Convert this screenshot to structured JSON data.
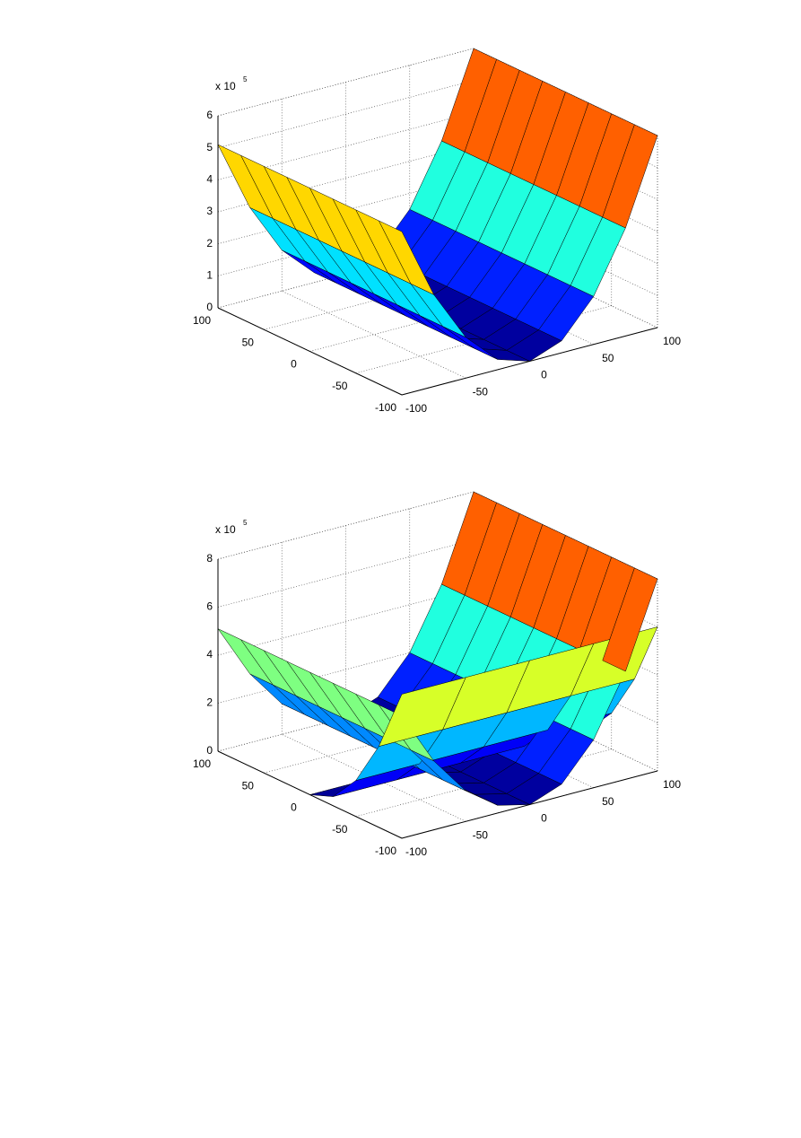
{
  "chart_data": [
    {
      "type": "surface",
      "colormap": "jet",
      "grid": true,
      "xlim": [
        -100,
        100
      ],
      "ylim": [
        -100,
        100
      ],
      "zlim": [
        0,
        600000
      ],
      "xticks": [
        -100,
        -50,
        0,
        50,
        100
      ],
      "yticks": [
        -100,
        -50,
        0,
        50,
        100
      ],
      "zticks": [
        {
          "value": 0,
          "label": "0"
        },
        {
          "value": 100000,
          "label": "1"
        },
        {
          "value": 200000,
          "label": "2"
        },
        {
          "value": 300000,
          "label": "3"
        },
        {
          "value": 400000,
          "label": "4"
        },
        {
          "value": 500000,
          "label": "5"
        },
        {
          "value": 600000,
          "label": "6"
        }
      ],
      "zscale": {
        "base": "x 10",
        "exponent": "5"
      },
      "series": [
        {
          "x": [
            -100,
            -75,
            -50,
            -25,
            0
          ],
          "y": [
            -100,
            -75,
            -50,
            -25,
            0,
            25,
            50,
            75,
            100
          ],
          "values": [
            [
              510000,
              286875,
              127500,
              31875,
              0
            ],
            [
              510000,
              286875,
              127500,
              31875,
              0
            ],
            [
              510000,
              286875,
              127500,
              31875,
              0
            ],
            [
              510000,
              286875,
              127500,
              31875,
              0
            ],
            [
              510000,
              286875,
              127500,
              31875,
              0
            ],
            [
              510000,
              286875,
              127500,
              31875,
              0
            ],
            [
              510000,
              286875,
              127500,
              31875,
              0
            ],
            [
              510000,
              286875,
              127500,
              31875,
              0
            ],
            [
              510000,
              286875,
              127500,
              31875,
              0
            ]
          ]
        },
        {
          "x": [
            0,
            25,
            50,
            75,
            100
          ],
          "y": [
            -100,
            -75,
            -50,
            -25,
            0,
            25,
            50,
            75,
            100
          ],
          "values": [
            [
              0,
              37500,
              150000,
              337500,
              600000
            ],
            [
              0,
              37500,
              150000,
              337500,
              600000
            ],
            [
              0,
              37500,
              150000,
              337500,
              600000
            ],
            [
              0,
              37500,
              150000,
              337500,
              600000
            ],
            [
              0,
              37500,
              150000,
              337500,
              600000
            ],
            [
              0,
              37500,
              150000,
              337500,
              600000
            ],
            [
              0,
              37500,
              150000,
              337500,
              600000
            ],
            [
              0,
              37500,
              150000,
              337500,
              600000
            ],
            [
              0,
              37500,
              150000,
              337500,
              600000
            ]
          ]
        }
      ]
    },
    {
      "type": "surface",
      "colormap": "jet",
      "grid": true,
      "xlim": [
        -100,
        100
      ],
      "ylim": [
        -100,
        100
      ],
      "zlim": [
        0,
        800000
      ],
      "xticks": [
        -100,
        -50,
        0,
        50,
        100
      ],
      "yticks": [
        -100,
        -50,
        0,
        50,
        100
      ],
      "zticks": [
        {
          "value": 0,
          "label": "0"
        },
        {
          "value": 200000,
          "label": "2"
        },
        {
          "value": 400000,
          "label": "4"
        },
        {
          "value": 600000,
          "label": "6"
        },
        {
          "value": 800000,
          "label": "8"
        }
      ],
      "zscale": {
        "base": "x 10",
        "exponent": "5"
      },
      "series": [
        {
          "x": [
            -100,
            -75,
            -50,
            -25,
            0
          ],
          "y": [
            -100,
            -75,
            -50,
            -25,
            0,
            25,
            50,
            75,
            100
          ],
          "values": [
            [
              510000,
              286875,
              127500,
              31875,
              0
            ],
            [
              510000,
              286875,
              127500,
              31875,
              0
            ],
            [
              510000,
              286875,
              127500,
              31875,
              0
            ],
            [
              510000,
              286875,
              127500,
              31875,
              0
            ],
            [
              510000,
              286875,
              127500,
              31875,
              0
            ],
            [
              510000,
              286875,
              127500,
              31875,
              0
            ],
            [
              510000,
              286875,
              127500,
              31875,
              0
            ],
            [
              510000,
              286875,
              127500,
              31875,
              0
            ],
            [
              510000,
              286875,
              127500,
              31875,
              0
            ]
          ]
        },
        {
          "x": [
            0,
            25,
            50,
            75,
            100
          ],
          "y": [
            -100,
            -75,
            -50,
            -25,
            0,
            25,
            50,
            75,
            100
          ],
          "values": [
            [
              0,
              50000,
              200000,
              450000,
              800000
            ],
            [
              0,
              50000,
              200000,
              450000,
              800000
            ],
            [
              0,
              50000,
              200000,
              450000,
              800000
            ],
            [
              0,
              50000,
              200000,
              450000,
              800000
            ],
            [
              0,
              50000,
              200000,
              450000,
              800000
            ],
            [
              0,
              50000,
              200000,
              450000,
              800000
            ],
            [
              0,
              50000,
              200000,
              450000,
              800000
            ],
            [
              0,
              50000,
              200000,
              450000,
              800000
            ],
            [
              0,
              50000,
              200000,
              450000,
              800000
            ]
          ]
        },
        {
          "x": [
            -100,
            -50,
            0,
            50,
            100
          ],
          "y": [
            -100,
            -75,
            -50,
            -25,
            0
          ],
          "values": [
            [
              600000,
              600000,
              600000,
              600000,
              600000
            ],
            [
              337500,
              337500,
              337500,
              337500,
              337500
            ],
            [
              150000,
              150000,
              150000,
              150000,
              150000
            ],
            [
              37500,
              37500,
              37500,
              37500,
              37500
            ],
            [
              0,
              0,
              0,
              0,
              0
            ]
          ]
        }
      ]
    }
  ]
}
